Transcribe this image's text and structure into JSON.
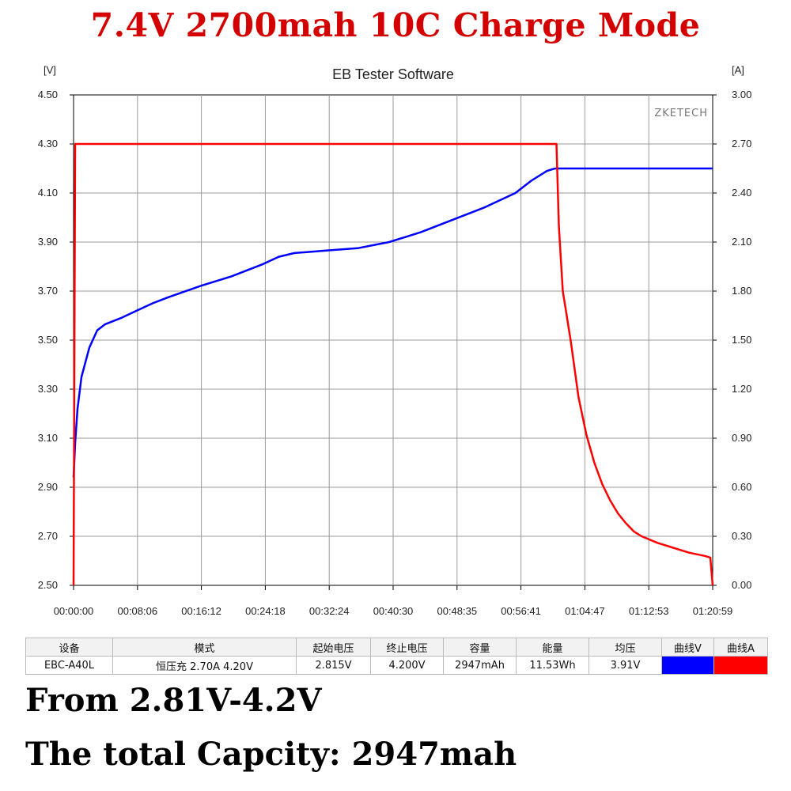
{
  "banner": {
    "title": "7.4V 2700mah 10C Charge Mode"
  },
  "chart_data": {
    "type": "line",
    "title": "EB Tester Software",
    "watermark": "ZKETECH",
    "left_axis": {
      "unit": "[V]",
      "ylim": [
        2.5,
        4.5
      ],
      "ticks": [
        "4.50",
        "4.30",
        "4.10",
        "3.90",
        "3.70",
        "3.50",
        "3.30",
        "3.10",
        "2.90",
        "2.70",
        "2.50"
      ]
    },
    "right_axis": {
      "unit": "[A]",
      "ylim": [
        0,
        3
      ],
      "ticks": [
        "3.00",
        "2.70",
        "2.40",
        "2.10",
        "1.80",
        "1.50",
        "1.20",
        "0.90",
        "0.60",
        "0.30",
        "0.00"
      ]
    },
    "x_ticks": [
      "00:00:00",
      "00:08:06",
      "00:16:12",
      "00:24:18",
      "00:32:24",
      "00:40:30",
      "00:48:35",
      "00:56:41",
      "01:04:47",
      "01:12:53",
      "01:20:59"
    ],
    "x_range_min": [
      0,
      81
    ],
    "grid": true,
    "series": [
      {
        "axis": "left",
        "color": "#0000ff",
        "x": [
          0,
          0.2,
          0.5,
          1,
          2,
          3,
          4,
          6,
          8,
          10,
          12,
          16,
          20,
          24,
          26,
          28,
          30,
          32,
          36,
          40,
          44,
          48,
          52,
          56,
          58,
          60,
          61,
          81
        ],
        "y": [
          2.94,
          3.08,
          3.22,
          3.35,
          3.47,
          3.54,
          3.565,
          3.59,
          3.62,
          3.65,
          3.675,
          3.72,
          3.76,
          3.81,
          3.84,
          3.855,
          3.86,
          3.865,
          3.875,
          3.9,
          3.94,
          3.99,
          4.04,
          4.1,
          4.15,
          4.19,
          4.2,
          4.2
        ]
      },
      {
        "axis": "right",
        "color": "#ff0000",
        "x": [
          0,
          0.2,
          61.2,
          61.5,
          62,
          63,
          64,
          65,
          66,
          67,
          68,
          69,
          70,
          71,
          72,
          74,
          76,
          78,
          80,
          80.7,
          81
        ],
        "y": [
          0.0,
          2.7,
          2.7,
          2.2,
          1.8,
          1.5,
          1.15,
          0.92,
          0.75,
          0.62,
          0.52,
          0.44,
          0.38,
          0.33,
          0.3,
          0.26,
          0.23,
          0.2,
          0.18,
          0.17,
          0.0
        ]
      }
    ]
  },
  "summary": {
    "headers": [
      "设备",
      "模式",
      "起始电压",
      "终止电压",
      "容量",
      "能量",
      "均压",
      "曲线V",
      "曲线A"
    ],
    "device": "EBC-A40L",
    "mode": "恒压充  2.70A  4.20V",
    "start_voltage": "2.815V",
    "end_voltage": "4.200V",
    "capacity": "2947mAh",
    "energy": "11.53Wh",
    "avg_voltage": "3.91V",
    "curve_v_color": "#0000ff",
    "curve_a_color": "#ff0000"
  },
  "caption": {
    "line1": "From 2.81V-4.2V",
    "line2": "The total Capcity: 2947mah"
  }
}
